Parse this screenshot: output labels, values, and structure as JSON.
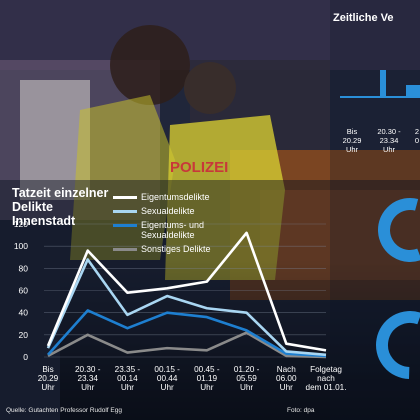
{
  "chart_data": {
    "type": "line",
    "title": "Tatzeit einzelner Delikte Innenstadt",
    "categories": [
      [
        "Bis",
        "20.29",
        "Uhr"
      ],
      [
        "20.30 -",
        "23.34",
        "Uhr"
      ],
      [
        "23.35 -",
        "00.14",
        "Uhr"
      ],
      [
        "00.15 -",
        "00.44",
        "Uhr"
      ],
      [
        "00.45 -",
        "01.19",
        "Uhr"
      ],
      [
        "01.20 -",
        "05.59",
        "Uhr"
      ],
      [
        "Nach",
        "06.00",
        "Uhr"
      ],
      [
        "Folgetag",
        "nach",
        "dem 01.01."
      ]
    ],
    "ylim": [
      0,
      120
    ],
    "yticks": [
      0,
      20,
      40,
      60,
      80,
      100,
      120
    ],
    "grid": true,
    "legend_position": "top-center",
    "series": [
      {
        "name": "Eigentumsdelikte",
        "color": "#ffffff",
        "values": [
          10,
          96,
          58,
          62,
          68,
          112,
          12,
          6
        ]
      },
      {
        "name": "Sexualdelikte",
        "color": "#a9d6f2",
        "values": [
          8,
          88,
          38,
          55,
          44,
          40,
          5,
          2
        ]
      },
      {
        "name": "Eigentums- und Sexualdelikte",
        "color": "#1e7fd0",
        "values": [
          2,
          42,
          26,
          40,
          36,
          24,
          3,
          1
        ]
      },
      {
        "name": "Sonstiges Delikte",
        "color": "#8a8a8a",
        "values": [
          1,
          20,
          4,
          8,
          6,
          22,
          1,
          0
        ]
      }
    ]
  },
  "right_panel": {
    "title": "Zeitliche Ve",
    "categories": [
      [
        "Bis",
        "20.29",
        "Uhr"
      ],
      [
        "20.30 -",
        "23.34",
        "Uhr"
      ],
      [
        "2",
        "0",
        ""
      ]
    ],
    "accent_color": "#2a8fd8"
  },
  "footer": {
    "source": "Quelle: Gutachten Professor Rudolf Egg",
    "credit": "Foto: dpa"
  },
  "photo": {
    "vest_text": "POLIZEI"
  }
}
